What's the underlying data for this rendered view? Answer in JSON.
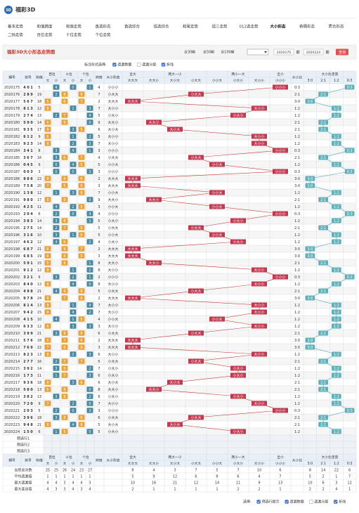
{
  "logo": "福彩3D",
  "nav": [
    [
      {
        "label": "基本走势"
      },
      {
        "label": "和值跨度"
      },
      {
        "label": "和值走势"
      },
      {
        "label": "直选形态"
      },
      {
        "label": "直选综合"
      },
      {
        "label": "组选综合"
      },
      {
        "label": "和尾走势"
      },
      {
        "label": "组三走势"
      },
      {
        "label": "012选走势"
      },
      {
        "label": "大小形态",
        "active": true
      },
      {
        "label": "奇偶形态"
      },
      {
        "label": "质合形态"
      }
    ],
    [
      {
        "label": "二码走势"
      },
      {
        "label": "百位走势"
      },
      {
        "label": "十位走势"
      },
      {
        "label": "个位走势"
      }
    ]
  ],
  "title": "福彩3D大小形态走势图",
  "periods": [
    "近30期",
    "近50期",
    "近100期"
  ],
  "range": {
    "from": "2020175",
    "unit": "期",
    "to": "2020224",
    "button": "查询"
  },
  "options": {
    "label": "标注形式选择:",
    "items": [
      {
        "label": "遗漏数据",
        "checked": true
      },
      {
        "label": "遗漏分层",
        "checked": false
      },
      {
        "label": "折线",
        "checked": true
      }
    ]
  },
  "table": {
    "header": {
      "issue": "期号",
      "num": "奖号",
      "sum": "和值",
      "digits": [
        "百位",
        "十位",
        "个位"
      ],
      "big": "大",
      "small": "小",
      "span": "跨度",
      "shape": "大小形态",
      "groups": [
        "全大",
        "两大一小",
        "两小一大",
        "全小"
      ],
      "shapes": [
        "大大大",
        "大大小",
        "大小大",
        "小大大",
        "小小大",
        "小大小",
        "大小小",
        "小小小"
      ],
      "ratio": "大小比",
      "trend": "大小比走势",
      "ratios": [
        "3:0",
        "2:1",
        "1:2",
        "0:3"
      ]
    },
    "rows": [
      [
        "2020175",
        [
          4,
          0,
          1
        ],
        5,
        4,
        "小小小",
        "0:3"
      ],
      [
        "2020176",
        [
          2,
          8,
          9
        ],
        19,
        7,
        "小大大",
        "2:1"
      ],
      [
        "2020177",
        [
          5,
          6,
          7
        ],
        18,
        2,
        "大大大",
        "3:0"
      ],
      [
        "2020178",
        [
          8,
          1,
          3
        ],
        12,
        7,
        "大小小",
        "1:2"
      ],
      [
        "2020179",
        [
          2,
          7,
          4
        ],
        13,
        5,
        "小大小",
        "1:2"
      ],
      [
        "2020180",
        [
          5,
          9,
          0
        ],
        14,
        9,
        "大大小",
        "2:1"
      ],
      [
        "2020181",
        [
          9,
          3,
          5
        ],
        17,
        6,
        "大小大",
        "2:1"
      ],
      [
        "2020182",
        [
          6,
          1,
          2
        ],
        9,
        5,
        "大小小",
        "1:2"
      ],
      [
        "2020183",
        [
          9,
          2,
          3
        ],
        14,
        7,
        "大小小",
        "1:2"
      ],
      [
        "2020184",
        [
          3,
          4,
          1
        ],
        8,
        3,
        "小小小",
        "0:3"
      ],
      [
        "2020185",
        [
          3,
          6,
          7
        ],
        16,
        4,
        "小大大",
        "2:1"
      ],
      [
        "2020186",
        [
          0,
          4,
          5
        ],
        9,
        5,
        "小小大",
        "1:2"
      ],
      [
        "2020187",
        [
          0,
          0,
          3
        ],
        3,
        3,
        "小小小",
        "0:3"
      ],
      [
        "2020188",
        [
          8,
          8,
          6
        ],
        22,
        2,
        "大大大",
        "3:0"
      ],
      [
        "2020189",
        [
          7,
          5,
          8
        ],
        20,
        3,
        "大大大",
        "3:0"
      ],
      [
        "2020190",
        [
          1,
          3,
          8
        ],
        12,
        7,
        "小小大",
        "1:2"
      ],
      [
        "2020191",
        [
          9,
          8,
          0
        ],
        17,
        9,
        "大大小",
        "2:1"
      ],
      [
        "2020192",
        [
          4,
          2,
          5
        ],
        11,
        3,
        "小小大",
        "1:2"
      ],
      [
        "2020193",
        [
          2,
          0,
          4
        ],
        6,
        4,
        "小小小",
        "0:3"
      ],
      [
        "2020194",
        [
          3,
          8,
          3
        ],
        14,
        5,
        "小大小",
        "1:2"
      ],
      [
        "2020195",
        [
          2,
          7,
          5
        ],
        14,
        5,
        "小大大",
        "2:1"
      ],
      [
        "2020196",
        [
          3,
          1,
          6
        ],
        10,
        5,
        "小小大",
        "1:2"
      ],
      [
        "2020197",
        [
          4,
          6,
          2
        ],
        12,
        4,
        "小大小",
        "1:2"
      ],
      [
        "2020198",
        [
          6,
          8,
          7
        ],
        21,
        2,
        "大大大",
        "3:0"
      ],
      [
        "2020199",
        [
          6,
          8,
          5
        ],
        19,
        3,
        "大大大",
        "3:0"
      ],
      [
        "2020200",
        [
          5,
          9,
          1
        ],
        15,
        8,
        "大大小",
        "2:1"
      ],
      [
        "2020201",
        [
          9,
          1,
          2
        ],
        12,
        8,
        "大小小",
        "1:2"
      ],
      [
        "2020202",
        [
          3,
          2,
          1
        ],
        6,
        2,
        "小小小",
        "0:3"
      ],
      [
        "2020203",
        [
          8,
          4,
          0
        ],
        12,
        8,
        "大小小",
        "1:2"
      ],
      [
        "2020204",
        [
          4,
          9,
          8
        ],
        21,
        5,
        "小大大",
        "2:1"
      ],
      [
        "2020205",
        [
          9,
          7,
          8
        ],
        24,
        2,
        "大大大",
        "3:0"
      ],
      [
        "2020206",
        [
          8,
          1,
          4
        ],
        13,
        7,
        "大小小",
        "1:2"
      ],
      [
        "2020207",
        [
          9,
          4,
          2
        ],
        15,
        7,
        "大小小",
        "1:2"
      ],
      [
        "2020208",
        [
          4,
          1,
          5
        ],
        10,
        4,
        "小小大",
        "1:2"
      ],
      [
        "2020209",
        [
          6,
          3,
          3
        ],
        12,
        3,
        "大小小",
        "1:2"
      ],
      [
        "2020210",
        [
          3,
          9,
          9
        ],
        21,
        6,
        "小大大",
        "2:1"
      ],
      [
        "2020211",
        [
          5,
          7,
          6
        ],
        18,
        2,
        "大大大",
        "3:0"
      ],
      [
        "2020212",
        [
          7,
          6,
          9
        ],
        22,
        3,
        "大大大",
        "3:0"
      ],
      [
        "2020213",
        [
          8,
          2,
          3
        ],
        13,
        6,
        "大小小",
        "1:2"
      ],
      [
        "2020214",
        [
          2,
          7,
          7
        ],
        16,
        5,
        "小大大",
        "2:1"
      ],
      [
        "2020215",
        [
          3,
          9,
          2
        ],
        14,
        7,
        "小大小",
        "1:2"
      ],
      [
        "2020216",
        [
          1,
          7,
          3
        ],
        11,
        6,
        "小大小",
        "1:2"
      ],
      [
        "2020217",
        [
          9,
          3,
          6
        ],
        18,
        6,
        "大小大",
        "2:1"
      ],
      [
        "2020218",
        [
          5,
          8,
          0
        ],
        13,
        8,
        "大大小",
        "2:1"
      ],
      [
        "2020219",
        [
          3,
          8,
          2
        ],
        13,
        6,
        "小大小",
        "1:2"
      ],
      [
        "2020220",
        [
          7,
          2,
          0
        ],
        9,
        7,
        "大小小",
        "1:2"
      ],
      [
        "2020221",
        [
          2,
          0,
          3
        ],
        5,
        3,
        "小小小",
        "0:3"
      ],
      [
        "2020222",
        [
          3,
          9,
          6
        ],
        18,
        6,
        "小大大",
        "2:1"
      ],
      [
        "2020223",
        [
          9,
          4,
          8
        ],
        21,
        5,
        "大小大",
        "2:1"
      ],
      [
        "2020224",
        [
          1,
          5,
          0
        ],
        6,
        5,
        "小大小",
        "1:2"
      ]
    ],
    "preselect": [
      "预选行1",
      "预选行2",
      "预选行3"
    ],
    "stats": [
      {
        "label": "出现总次数",
        "values": [
          25,
          25,
          26,
          24,
          23,
          27,
          8,
          4,
          3,
          7,
          5,
          7,
          10,
          6,
          8,
          14,
          22,
          6
        ]
      },
      {
        "label": "平均遗漏值",
        "values": [
          1,
          1,
          1,
          1,
          1,
          1,
          5,
          9,
          12,
          6,
          8,
          6,
          4,
          7,
          5,
          2,
          1,
          7
        ]
      },
      {
        "label": "最大遗漏值",
        "values": [
          4,
          4,
          3,
          4,
          4,
          3,
          10,
          16,
          21,
          12,
          14,
          11,
          9,
          13,
          10,
          6,
          3,
          12
        ]
      },
      {
        "label": "最大连出值",
        "values": [
          4,
          3,
          3,
          4,
          3,
          4,
          2,
          1,
          1,
          1,
          1,
          2,
          2,
          1,
          2,
          2,
          4,
          1
        ]
      }
    ]
  },
  "footer": {
    "label": "选择:",
    "items": [
      {
        "label": "预选行提示",
        "checked": true
      },
      {
        "label": "遗漏数据",
        "checked": true
      },
      {
        "label": "遗漏分层",
        "checked": false
      },
      {
        "label": "折线",
        "checked": true
      }
    ]
  }
}
